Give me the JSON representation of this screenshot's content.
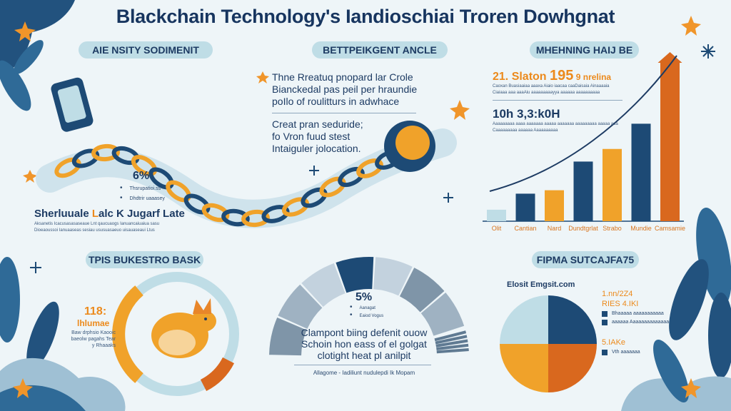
{
  "title": "Blackchain Technology's Iandioschiai Troren Dowhgnat",
  "colors": {
    "navy": "#1d4a75",
    "orange": "#f0a22a",
    "dark_orange": "#d9681e",
    "light_blue": "#bfdde6",
    "background": "#eef5f8"
  },
  "sections": {
    "top_left": {
      "pill": "AIE NSITY SODIMENIT",
      "stat": "6%",
      "bullets": [
        "Thsrupatioi.ss",
        "Dhdtrir uaaasey"
      ],
      "heading_a": "Sherluuale ",
      "heading_b": "L",
      "heading_c": "alc K Jugarf Late",
      "fine_print": [
        "Aksanetis Icacusasasaseaue Lnt qaucuaogs Ianuancaiuaiua sasu",
        "Dioeaoussoi Ianuaaseas sesiau ususuasaeuo uisauaseaui Ltus"
      ]
    },
    "top_center": {
      "pill": "BETTPEIKGENT ANCLE",
      "paragraph_1": [
        "Thne Rreatuq pnopard lar Crole",
        "Bianckedal pas peil per hraundie",
        "poIlo of roulitturs in adwhace"
      ],
      "paragraph_2": [
        "Creat pran seduride;",
        "fo Vron fuud stest",
        "Intaiguler jolocation."
      ]
    },
    "top_right": {
      "pill": "MHEHNING HAIJ BE",
      "headline_a": "21. Slaton ",
      "headline_b": "195",
      "headline_c": " 9 nrelina",
      "fine_a": [
        "Caoxan Buasiaaiaa aaaxa Aiaio iaacaa caaDaisaia Ainaaaaia",
        "Ciaiaaa aaa aaaAiu aaaaaaaaayya aaaaaa aaaaaaaaaa"
      ],
      "stat_2": "10h 3,3:k0H",
      "fine_b": [
        "Aaaaaaaaa aaaa aaaaaaa aaaaa aaaaaaa aaaaaaaaa aaaaa aaa",
        "Caaaaaaaaa aaaaaa Aaaaaaaaaa"
      ]
    },
    "bottom_left": {
      "pill": "TPIS BUKESTRO BASK",
      "stat": "118:",
      "stat_label": "lhlumae",
      "desc": [
        "Baw drphsio Kaooic",
        "baeolw pagahs Tear",
        "y Rhaaaks"
      ],
      "ring_fill_fraction": 0.45
    },
    "bottom_center": {
      "stat": "5%",
      "bullets": [
        "Aanagat",
        "Eaiod Vogus"
      ],
      "paragraph": [
        "Clampont biing defenit ouow",
        "Schoin hon eass of el golgat",
        "clotight heat pl anilpit"
      ],
      "caption": "Allagome - Iadiliunt nudulepdi Ik Mopam"
    },
    "bottom_right": {
      "pill": "FIPMA SUTCAJFA75",
      "pie_title": "Elosit Emgsit.com",
      "stat_a_1": "1.nn/2Z4",
      "stat_a_2": "RIES 4.IKI",
      "legend_a": [
        "Bhaaaaa aaaaaaaaaaa",
        "aaaaaa Aaaaaaaaaaaaaa"
      ],
      "stat_b": "5.IAKe",
      "legend_b": [
        "Vth aaaaaaa"
      ]
    }
  },
  "chart_data": [
    {
      "type": "bar",
      "categories": [
        "Olit",
        "Cantian",
        "Nard",
        "Dundtgrlat",
        "Strabo",
        "Mundie",
        "Camsamie"
      ],
      "values": [
        1,
        2.4,
        2.7,
        5.2,
        6.3,
        8.5,
        14
      ],
      "bar_colors": [
        "#bfdde6",
        "#1d4a75",
        "#f0a22a",
        "#1d4a75",
        "#f0a22a",
        "#1d4a75",
        "#d9681e"
      ],
      "trend_line": true
    },
    {
      "type": "pie",
      "values": [
        25,
        25,
        25,
        25
      ],
      "slice_colors": [
        "#1d4a75",
        "#d9681e",
        "#f0a22a",
        "#bfdde6"
      ]
    }
  ]
}
